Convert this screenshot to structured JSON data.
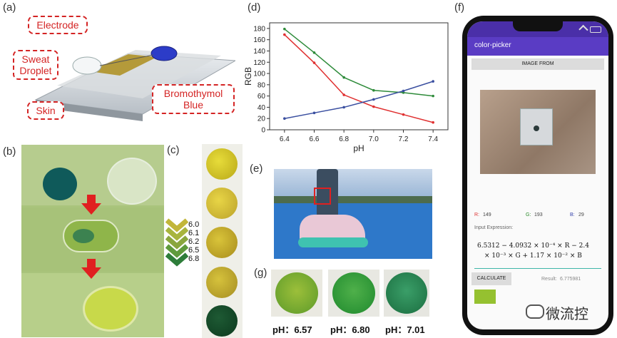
{
  "panels": {
    "a": "(a)",
    "b": "(b)",
    "c": "(c)",
    "d": "(d)",
    "e": "(e)",
    "f": "(f)",
    "g": "(g)"
  },
  "panel_a": {
    "electrode": "Electrode",
    "sweat": "Sweat\nDroplet",
    "skin": "Skin",
    "bromothymol": "Bromothymol\nBlue"
  },
  "panel_c": {
    "ph_levels": [
      "6.0",
      "6.1",
      "6.2",
      "6.5",
      "6.8"
    ]
  },
  "panel_g": {
    "captions": [
      "pH：6.57",
      "pH：6.80",
      "pH：7.01"
    ]
  },
  "chart_data": {
    "type": "line",
    "xlabel": "pH",
    "ylabel": "RGB",
    "x": [
      6.4,
      6.6,
      6.8,
      7.0,
      7.2,
      7.4
    ],
    "xticks": [
      "6.4",
      "6.6",
      "6.8",
      "7.0",
      "7.2",
      "7.4"
    ],
    "yticks": [
      "0",
      "20",
      "40",
      "60",
      "80",
      "100",
      "120",
      "140",
      "160",
      "180"
    ],
    "xlim": [
      6.3,
      7.5
    ],
    "ylim": [
      0,
      190
    ],
    "series": [
      {
        "name": "R",
        "color": "#e03030",
        "values": [
          169,
          119,
          62,
          41,
          27,
          13
        ]
      },
      {
        "name": "G",
        "color": "#2e8b3a",
        "values": [
          179,
          137,
          93,
          70,
          66,
          60
        ]
      },
      {
        "name": "B",
        "color": "#3a4fa0",
        "values": [
          20,
          30,
          40,
          54,
          69,
          86
        ]
      }
    ]
  },
  "phone": {
    "app_title": "color-picker",
    "image_button": "IMAGE FROM",
    "r_label": "R:",
    "r_value": "149",
    "g_label": "G:",
    "g_value": "193",
    "b_label": "B:",
    "b_value": "29",
    "input_label": "Input Expression:",
    "expr_line1": "6.5312 − 4.0932 × 10⁻⁴ × R − 2.4",
    "expr_line2": "× 10⁻³ × G + 1.17 × 10⁻² × B",
    "calculate": "CALCULATE",
    "result_label": "Result:",
    "result_value": "6.775981",
    "swatch_color": "#95c130"
  },
  "watermark": "微流控"
}
